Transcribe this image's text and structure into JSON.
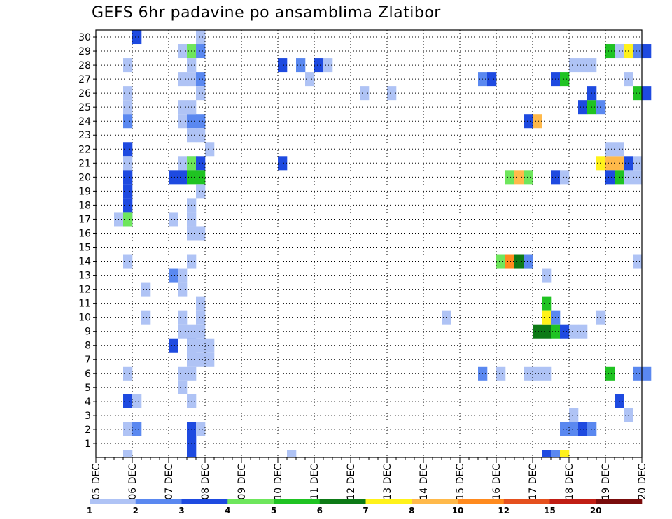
{
  "chart_data": {
    "type": "heatmap",
    "title": "GEFS 6hr padavine po ansamblima Zlatibor",
    "xlabel": "",
    "ylabel": "",
    "x_tick_labels": [
      "05 DEC",
      "06 DEC",
      "07 DEC",
      "08 DEC",
      "09 DEC",
      "10 DEC",
      "11 DEC",
      "12 DEC",
      "13 DEC",
      "14 DEC",
      "15 DEC",
      "16 DEC",
      "17 DEC",
      "18 DEC",
      "19 DEC",
      "20 DEC"
    ],
    "y_tick_labels": [
      "1",
      "2",
      "3",
      "4",
      "5",
      "6",
      "7",
      "8",
      "9",
      "10",
      "11",
      "12",
      "13",
      "14",
      "15",
      "16",
      "17",
      "18",
      "19",
      "20",
      "21",
      "22",
      "23",
      "24",
      "25",
      "26",
      "27",
      "28",
      "29",
      "30"
    ],
    "x_range_steps": [
      0,
      60
    ],
    "y_range_members": [
      0,
      30
    ],
    "grid": true,
    "legend_position": "bottom",
    "legend_labels": [
      "1",
      "2",
      "3",
      "4",
      "5",
      "6",
      "7",
      "8",
      "10",
      "12",
      "15",
      "20"
    ],
    "legend_colors": [
      "#afc3f5",
      "#5a88f0",
      "#1e4ae0",
      "#6ee65c",
      "#1fc322",
      "#0d7a16",
      "#fff21a",
      "#ffb94a",
      "#ff8a1e",
      "#e5501e",
      "#c01d14",
      "#7a0c0c"
    ],
    "cells": [
      [
        3,
        1,
        0
      ],
      [
        4,
        3,
        30
      ],
      [
        3,
        1,
        28
      ],
      [
        3,
        1,
        26
      ],
      [
        3,
        1,
        25
      ],
      [
        3,
        2,
        24
      ],
      [
        3,
        3,
        22
      ],
      [
        3,
        1,
        21
      ],
      [
        3,
        3,
        20
      ],
      [
        3,
        3,
        19
      ],
      [
        3,
        3,
        18
      ],
      [
        3,
        2,
        17
      ],
      [
        2,
        1,
        17
      ],
      [
        3,
        4,
        17
      ],
      [
        3,
        1,
        14
      ],
      [
        3,
        1,
        6
      ],
      [
        3,
        3,
        4
      ],
      [
        3,
        1,
        2
      ],
      [
        4,
        1,
        4
      ],
      [
        4,
        2,
        2
      ],
      [
        5,
        1,
        12
      ],
      [
        5,
        1,
        10
      ],
      [
        8,
        3,
        20
      ],
      [
        8,
        1,
        17
      ],
      [
        8,
        2,
        13
      ],
      [
        8,
        3,
        8
      ],
      [
        9,
        1,
        13
      ],
      [
        9,
        1,
        12
      ],
      [
        9,
        1,
        29
      ],
      [
        9,
        1,
        27
      ],
      [
        9,
        1,
        25
      ],
      [
        9,
        1,
        24
      ],
      [
        9,
        1,
        21
      ],
      [
        9,
        3,
        20
      ],
      [
        9,
        1,
        10
      ],
      [
        9,
        1,
        9
      ],
      [
        9,
        1,
        6
      ],
      [
        9,
        1,
        5
      ],
      [
        10,
        4,
        29
      ],
      [
        10,
        1,
        28
      ],
      [
        10,
        1,
        27
      ],
      [
        10,
        2,
        24
      ],
      [
        10,
        1,
        25
      ],
      [
        10,
        1,
        23
      ],
      [
        10,
        1,
        21
      ],
      [
        10,
        4,
        21
      ],
      [
        10,
        5,
        20
      ],
      [
        10,
        1,
        18
      ],
      [
        10,
        1,
        17
      ],
      [
        10,
        1,
        14
      ],
      [
        10,
        1,
        9
      ],
      [
        10,
        2,
        8
      ],
      [
        10,
        1,
        8
      ],
      [
        10,
        1,
        7
      ],
      [
        10,
        1,
        6
      ],
      [
        10,
        1,
        4
      ],
      [
        10,
        3,
        2
      ],
      [
        10,
        3,
        1
      ],
      [
        10,
        3,
        0
      ],
      [
        10,
        1,
        16
      ],
      [
        11,
        1,
        30
      ],
      [
        11,
        2,
        29
      ],
      [
        11,
        2,
        27
      ],
      [
        11,
        1,
        26
      ],
      [
        11,
        2,
        24
      ],
      [
        11,
        1,
        23
      ],
      [
        11,
        3,
        21
      ],
      [
        11,
        5,
        20
      ],
      [
        11,
        1,
        19
      ],
      [
        11,
        1,
        16
      ],
      [
        11,
        1,
        11
      ],
      [
        11,
        1,
        10
      ],
      [
        11,
        1,
        9
      ],
      [
        11,
        1,
        8
      ],
      [
        11,
        1,
        7
      ],
      [
        11,
        1,
        2
      ],
      [
        12,
        1,
        22
      ],
      [
        12,
        1,
        8
      ],
      [
        12,
        1,
        7
      ],
      [
        20,
        3,
        28
      ],
      [
        20,
        3,
        21
      ],
      [
        21,
        1,
        0
      ],
      [
        22,
        2,
        28
      ],
      [
        23,
        1,
        27
      ],
      [
        24,
        3,
        28
      ],
      [
        25,
        1,
        28
      ],
      [
        29,
        1,
        26
      ],
      [
        32,
        1,
        26
      ],
      [
        38,
        1,
        10
      ],
      [
        42,
        2,
        27
      ],
      [
        42,
        2,
        6
      ],
      [
        43,
        3,
        27
      ],
      [
        44,
        1,
        6
      ],
      [
        44,
        4,
        14
      ],
      [
        45,
        9,
        14
      ],
      [
        45,
        4,
        20
      ],
      [
        46,
        8,
        20
      ],
      [
        46,
        6,
        14
      ],
      [
        47,
        5,
        14
      ],
      [
        47,
        4,
        20
      ],
      [
        47,
        2,
        14
      ],
      [
        47,
        3,
        24
      ],
      [
        48,
        8,
        24
      ],
      [
        47,
        1,
        6
      ],
      [
        48,
        1,
        6
      ],
      [
        49,
        1,
        6
      ],
      [
        49,
        1,
        13
      ],
      [
        48,
        6,
        9
      ],
      [
        49,
        6,
        9
      ],
      [
        49,
        5,
        11
      ],
      [
        49,
        7,
        10
      ],
      [
        50,
        2,
        10
      ],
      [
        50,
        5,
        9
      ],
      [
        49,
        3,
        0
      ],
      [
        50,
        2,
        0
      ],
      [
        51,
        7,
        0
      ],
      [
        50,
        3,
        27
      ],
      [
        51,
        5,
        27
      ],
      [
        50,
        3,
        20
      ],
      [
        51,
        1,
        20
      ],
      [
        51,
        3,
        9
      ],
      [
        52,
        1,
        9
      ],
      [
        53,
        1,
        9
      ],
      [
        51,
        2,
        2
      ],
      [
        52,
        2,
        2
      ],
      [
        53,
        3,
        2
      ],
      [
        53,
        3,
        25
      ],
      [
        54,
        5,
        25
      ],
      [
        54,
        2,
        2
      ],
      [
        52,
        1,
        3
      ],
      [
        52,
        1,
        28
      ],
      [
        53,
        1,
        28
      ],
      [
        54,
        1,
        28
      ],
      [
        54,
        3,
        26
      ],
      [
        55,
        2,
        25
      ],
      [
        55,
        1,
        10
      ],
      [
        55,
        7,
        21
      ],
      [
        56,
        8,
        21
      ],
      [
        57,
        8,
        21
      ],
      [
        56,
        5,
        29
      ],
      [
        57,
        1,
        29
      ],
      [
        58,
        7,
        29
      ],
      [
        59,
        2,
        29
      ],
      [
        60,
        3,
        29
      ],
      [
        56,
        1,
        22
      ],
      [
        57,
        1,
        22
      ],
      [
        56,
        3,
        20
      ],
      [
        57,
        5,
        20
      ],
      [
        58,
        1,
        20
      ],
      [
        59,
        1,
        20
      ],
      [
        59,
        1,
        21
      ],
      [
        58,
        3,
        21
      ],
      [
        56,
        5,
        6
      ],
      [
        57,
        3,
        4
      ],
      [
        58,
        1,
        3
      ],
      [
        58,
        1,
        27
      ],
      [
        59,
        5,
        26
      ],
      [
        60,
        3,
        26
      ],
      [
        59,
        1,
        14
      ],
      [
        59,
        2,
        6
      ],
      [
        60,
        2,
        6
      ]
    ]
  }
}
